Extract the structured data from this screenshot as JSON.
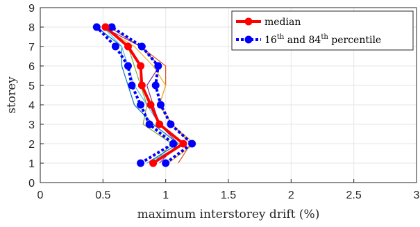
{
  "chart_data": {
    "type": "line",
    "xlabel": "maximum interstorey drift (%)",
    "ylabel": "storey",
    "xlim": [
      0,
      3
    ],
    "ylim": [
      0,
      9
    ],
    "xticks": [
      "0",
      "0.5",
      "1",
      "1.5",
      "2",
      "2.5",
      "3"
    ],
    "yticks": [
      "0",
      "1",
      "2",
      "3",
      "4",
      "5",
      "6",
      "7",
      "8",
      "9"
    ],
    "grid": true,
    "legend_position": "top-right",
    "legend": {
      "median": "median",
      "pct_prefix": "16",
      "pct_sup1": "th",
      "pct_mid": " and 84",
      "pct_sup2": "th",
      "pct_suffix": " percentile"
    },
    "colors": {
      "median": "#ff0000",
      "percentile": "#0000ff",
      "grid": "#e6e6e6",
      "axis": "#262626"
    },
    "storeys": [
      1,
      2,
      3,
      4,
      5,
      6,
      7,
      8
    ],
    "median": [
      0.9,
      1.14,
      0.95,
      0.88,
      0.81,
      0.8,
      0.7,
      0.52
    ],
    "p16": [
      0.8,
      1.06,
      0.87,
      0.8,
      0.73,
      0.7,
      0.6,
      0.45
    ],
    "p84": [
      1.0,
      1.21,
      1.04,
      0.96,
      0.92,
      0.94,
      0.81,
      0.57
    ],
    "records": [
      {
        "color": "#d95319",
        "x": [
          1.1,
          1.2,
          1.05,
          0.95,
          1.0,
          1.0,
          0.8,
          0.55
        ]
      },
      {
        "color": "#edb120",
        "x": [
          1.02,
          1.23,
          1.05,
          0.95,
          1.0,
          0.9,
          0.75,
          0.5
        ]
      },
      {
        "color": "#7e2f8e",
        "x": [
          0.95,
          1.1,
          0.95,
          0.9,
          0.85,
          0.95,
          0.8,
          0.5
        ]
      },
      {
        "color": "#77ac30",
        "x": [
          0.9,
          1.05,
          0.82,
          0.85,
          0.8,
          0.75,
          0.7,
          0.5
        ]
      },
      {
        "color": "#0072bd",
        "x": [
          0.85,
          1.1,
          0.9,
          0.75,
          0.7,
          0.65,
          0.65,
          0.45
        ]
      },
      {
        "color": "#4dbeee",
        "x": [
          0.85,
          1.15,
          0.95,
          0.85,
          0.75,
          0.7,
          0.65,
          0.5
        ]
      }
    ]
  }
}
